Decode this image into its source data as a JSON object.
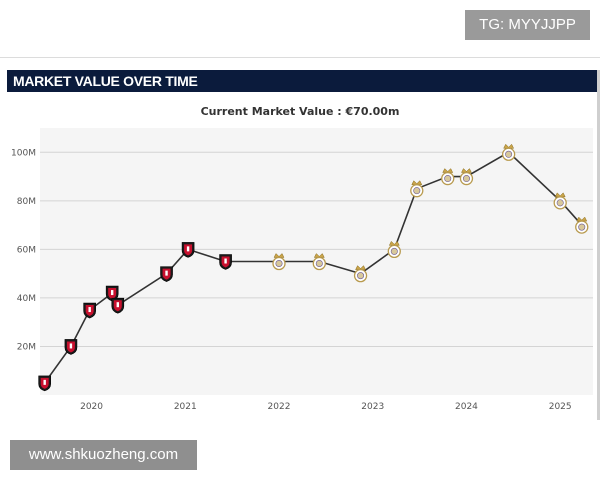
{
  "overlay": {
    "tg_badge": "TG: MYYJJPP",
    "watermark": "www.shkuozheng.com"
  },
  "header": {
    "title": "MARKET VALUE OVER TIME"
  },
  "chart_data": {
    "type": "line",
    "title": "Current Market Value : €70.00m",
    "xlabel": "",
    "ylabel": "",
    "xlim": [
      2019.45,
      2025.35
    ],
    "ylim": [
      0,
      110
    ],
    "x_ticks": [
      2020,
      2021,
      2022,
      2023,
      2024,
      2025
    ],
    "x_tick_labels": [
      "2020",
      "2021",
      "2022",
      "2023",
      "2024",
      "2025"
    ],
    "y_ticks": [
      20,
      40,
      60,
      80,
      100
    ],
    "y_tick_labels": [
      "20M",
      "40M",
      "60M",
      "80M",
      "100M"
    ],
    "grid": "horizontal",
    "line_color": "#333333",
    "background_color": "#f5f5f5",
    "club_colors": {
      "rennes": "#c8102e",
      "real_madrid": "#d8c89a"
    },
    "points": [
      {
        "x": 2019.5,
        "y": 5,
        "club": "rennes"
      },
      {
        "x": 2019.78,
        "y": 20,
        "club": "rennes"
      },
      {
        "x": 2019.98,
        "y": 35,
        "club": "rennes"
      },
      {
        "x": 2020.22,
        "y": 42,
        "club": "rennes"
      },
      {
        "x": 2020.28,
        "y": 37,
        "club": "rennes"
      },
      {
        "x": 2020.8,
        "y": 50,
        "club": "rennes"
      },
      {
        "x": 2021.03,
        "y": 60,
        "club": "rennes"
      },
      {
        "x": 2021.43,
        "y": 55,
        "club": "rennes"
      },
      {
        "x": 2022.0,
        "y": 55,
        "club": "real_madrid"
      },
      {
        "x": 2022.43,
        "y": 55,
        "club": "real_madrid"
      },
      {
        "x": 2022.87,
        "y": 50,
        "club": "real_madrid"
      },
      {
        "x": 2023.23,
        "y": 60,
        "club": "real_madrid"
      },
      {
        "x": 2023.47,
        "y": 85,
        "club": "real_madrid"
      },
      {
        "x": 2023.8,
        "y": 90,
        "club": "real_madrid"
      },
      {
        "x": 2024.0,
        "y": 90,
        "club": "real_madrid"
      },
      {
        "x": 2024.45,
        "y": 100,
        "club": "real_madrid"
      },
      {
        "x": 2025.0,
        "y": 80,
        "club": "real_madrid"
      },
      {
        "x": 2025.23,
        "y": 70,
        "club": "real_madrid"
      }
    ]
  }
}
